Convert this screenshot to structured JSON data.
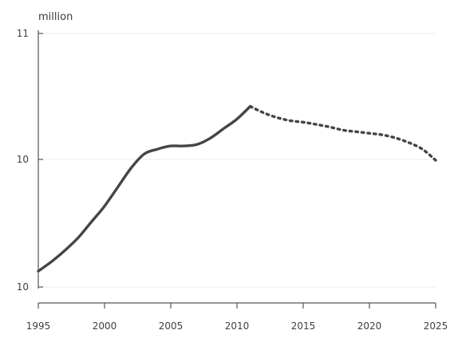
{
  "chart_data": {
    "type": "line",
    "title": "",
    "xlabel": "",
    "ylabel": "million",
    "x_ticks": [
      1995,
      2000,
      2005,
      2010,
      2015,
      2020,
      2025
    ],
    "x_tick_labels": [
      "1995",
      "2000",
      "2005",
      "2010",
      "2015",
      "2020",
      "2025"
    ],
    "y_tick_labels": [
      "11",
      "10",
      "10"
    ],
    "xlim": [
      1995,
      2025
    ],
    "grid": true,
    "legend": "none",
    "series": [
      {
        "style": "solid",
        "color": "#454545",
        "x": [
          1995,
          1996,
          1997,
          1998,
          1999,
          2000,
          2001,
          2002,
          2003,
          2004,
          2005,
          2006,
          2007,
          2008,
          2009,
          2010,
          2011
        ],
        "y": [
          9.75,
          9.78,
          9.815,
          9.855,
          9.905,
          9.955,
          10.015,
          10.075,
          10.12,
          10.135,
          10.145,
          10.145,
          10.15,
          10.17,
          10.2,
          10.23,
          10.27
        ]
      },
      {
        "style": "dotted",
        "color": "#454545",
        "x": [
          2011,
          2012,
          2013,
          2014,
          2015,
          2016,
          2017,
          2018,
          2019,
          2020,
          2021,
          2022,
          2023,
          2024,
          2025
        ],
        "y": [
          10.27,
          10.25,
          10.235,
          10.225,
          10.22,
          10.213,
          10.205,
          10.195,
          10.19,
          10.185,
          10.18,
          10.17,
          10.155,
          10.135,
          10.1
        ]
      }
    ]
  }
}
